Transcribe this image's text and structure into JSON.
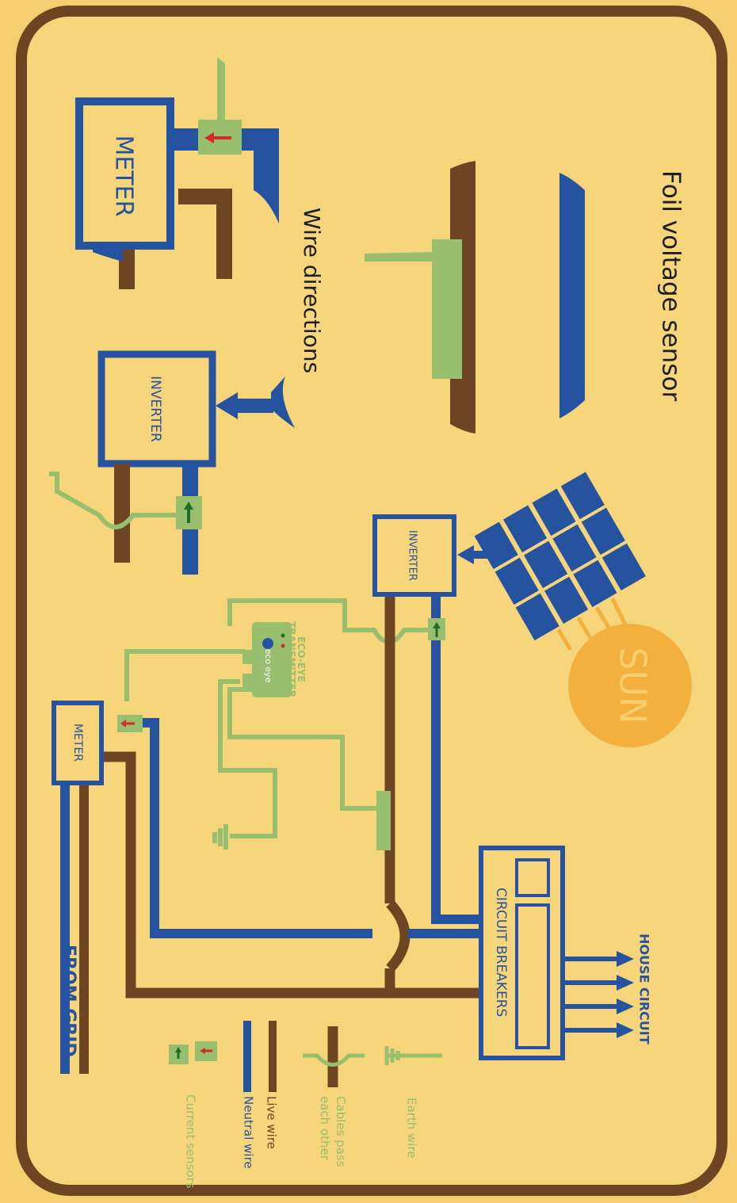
{
  "title": "Foil voltage sensor",
  "subtitle": "Wire directions",
  "top_meter": "METER",
  "top_inverter": "INVERTER",
  "diagram": {
    "sun": "SUN",
    "inverter": "INVERTER",
    "transmitter": [
      "ECO-EYE",
      "TRANSMITTER"
    ],
    "logo": [
      "eco",
      "eye"
    ],
    "meter": "METER",
    "circuit_breakers": "CIRCUIT BREAKERS",
    "house_circuit": "HOUSE CIRCUIT",
    "from_grid": "FROM GRID"
  },
  "legend": {
    "earth": "Earth wire",
    "cross": [
      "Cables pass",
      "each other"
    ],
    "live": "Live wire",
    "neutral": "Neutral wire",
    "sensors": "Current sensors"
  }
}
